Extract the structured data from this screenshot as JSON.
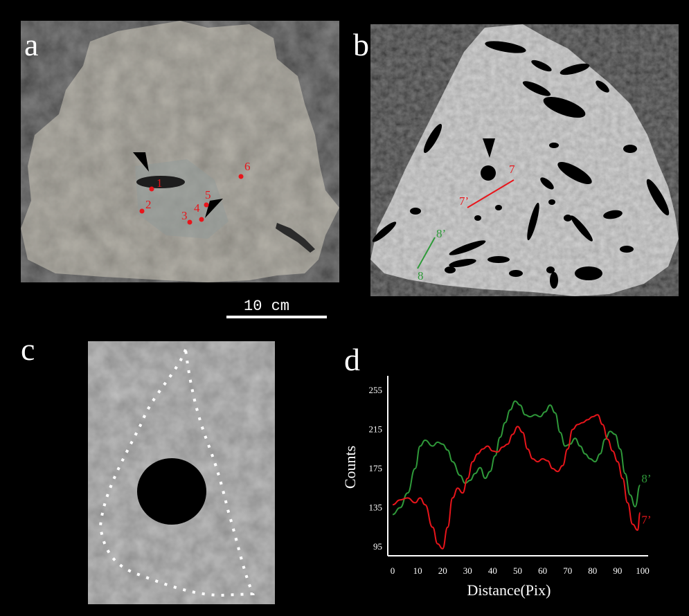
{
  "panels": {
    "a": {
      "label": "a",
      "markers": [
        "1",
        "2",
        "3",
        "4",
        "5",
        "6"
      ],
      "scale_bar": "10 cm"
    },
    "b": {
      "label": "b",
      "line_labels": [
        "7",
        "7’",
        "8",
        "8’"
      ]
    },
    "c": {
      "label": "c"
    },
    "d": {
      "label": "d"
    }
  },
  "colors": {
    "red": "#e8151b",
    "green": "#2f9a3a",
    "background": "#000000"
  },
  "chart_data": {
    "type": "line",
    "xlabel": "Distance(Pix)",
    "ylabel": "Counts",
    "xlim": [
      0,
      100
    ],
    "ylim": [
      85,
      265
    ],
    "x_ticks": [
      0,
      10,
      20,
      30,
      40,
      50,
      60,
      70,
      80,
      90,
      100
    ],
    "y_ticks": [
      95,
      135,
      175,
      215,
      255
    ],
    "series": [
      {
        "name": "8’",
        "color": "#2f9a3a",
        "x": [
          0,
          3,
          6,
          9,
          11,
          13,
          16,
          18,
          20,
          22,
          24,
          27,
          29,
          31,
          33,
          35,
          37,
          39,
          41,
          43,
          45,
          47,
          49,
          51,
          53,
          55,
          57,
          59,
          61,
          63,
          65,
          67,
          69,
          71,
          73,
          75,
          77,
          79,
          81,
          83,
          85,
          87,
          89,
          91,
          93,
          95,
          97,
          99
        ],
        "y": [
          128,
          135,
          150,
          175,
          198,
          204,
          198,
          202,
          200,
          194,
          182,
          168,
          160,
          163,
          170,
          176,
          165,
          172,
          188,
          207,
          222,
          235,
          244,
          240,
          230,
          228,
          230,
          228,
          233,
          240,
          232,
          212,
          198,
          200,
          206,
          198,
          190,
          185,
          182,
          190,
          205,
          213,
          210,
          195,
          170,
          148,
          136,
          158
        ]
      },
      {
        "name": "7’",
        "color": "#e8151b",
        "x": [
          0,
          3,
          6,
          9,
          11,
          13,
          16,
          18,
          20,
          22,
          24,
          26,
          28,
          30,
          32,
          34,
          36,
          38,
          40,
          42,
          44,
          46,
          48,
          50,
          52,
          54,
          56,
          58,
          60,
          62,
          64,
          66,
          68,
          70,
          72,
          74,
          76,
          78,
          80,
          82,
          84,
          86,
          88,
          90,
          92,
          94,
          96,
          98,
          99
        ],
        "y": [
          138,
          143,
          145,
          140,
          145,
          138,
          115,
          98,
          93,
          115,
          145,
          155,
          150,
          165,
          182,
          190,
          195,
          198,
          193,
          192,
          197,
          200,
          210,
          218,
          212,
          195,
          185,
          182,
          185,
          183,
          175,
          172,
          178,
          195,
          215,
          220,
          222,
          225,
          228,
          230,
          220,
          205,
          193,
          182,
          165,
          140,
          118,
          112,
          130
        ]
      }
    ]
  }
}
